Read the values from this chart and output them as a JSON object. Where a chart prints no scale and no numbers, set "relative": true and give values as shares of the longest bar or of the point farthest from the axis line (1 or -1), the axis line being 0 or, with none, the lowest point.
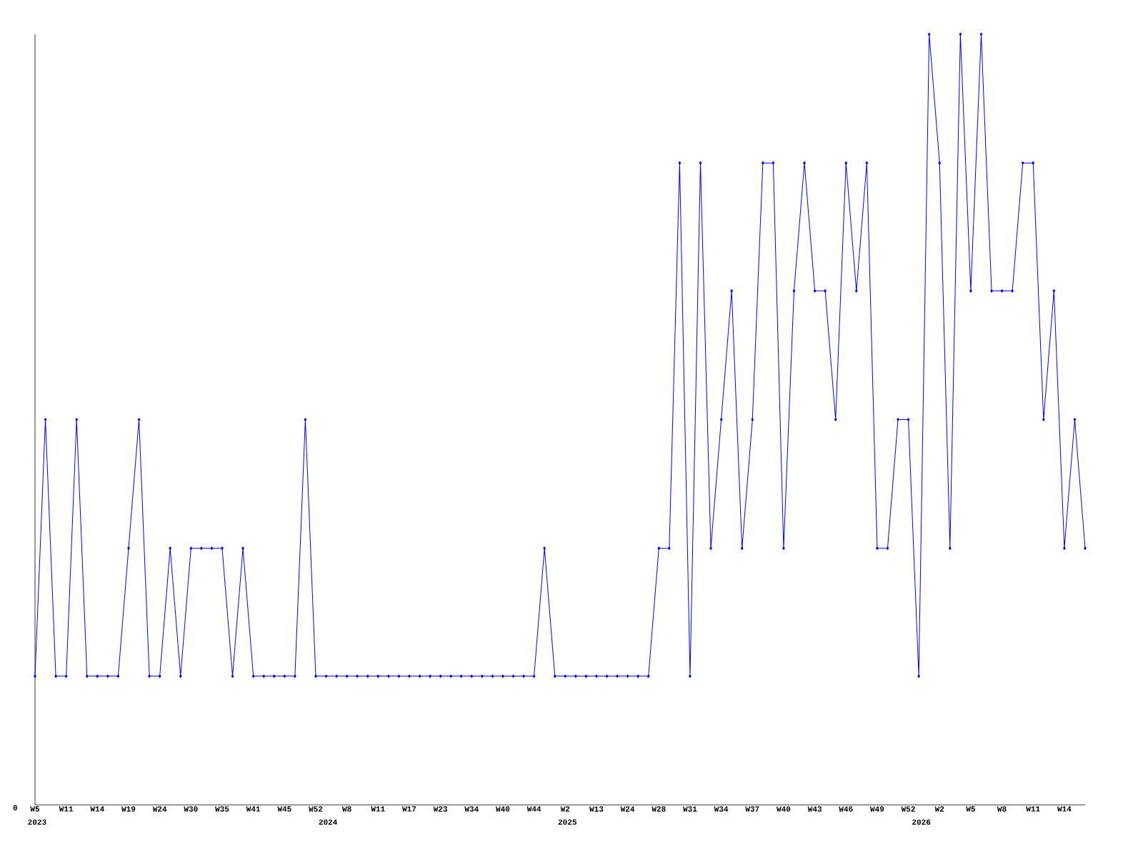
{
  "chart_data": {
    "type": "line",
    "relative": true,
    "color": "#0000ff",
    "marker": "diamond",
    "line_style": "solid",
    "categories": [
      "W5",
      null,
      null,
      "W11",
      null,
      null,
      "W14",
      null,
      null,
      "W19",
      null,
      null,
      "W24",
      null,
      null,
      "W30",
      null,
      null,
      "W35",
      null,
      null,
      "W41",
      null,
      null,
      "W45",
      null,
      null,
      "W52",
      null,
      null,
      "W8",
      null,
      null,
      "W11",
      null,
      null,
      "W17",
      null,
      null,
      "W23",
      null,
      null,
      "W34",
      null,
      null,
      "W40",
      null,
      null,
      "W44",
      null,
      null,
      "W2",
      null,
      null,
      "W13",
      null,
      null,
      "W24",
      null,
      null,
      "W28",
      null,
      null,
      "W31",
      null,
      null,
      "W34",
      null,
      null,
      "W37",
      null,
      null,
      "W40",
      null,
      null,
      "W43",
      null,
      null,
      "W46",
      null,
      null,
      "W49",
      null,
      null,
      "W52",
      null,
      null,
      "W2",
      null,
      null,
      "W5",
      null,
      null,
      "W8",
      null,
      null,
      "W11",
      null,
      null,
      "W14",
      null,
      null
    ],
    "values": [
      0.167,
      0.5,
      0.167,
      0.167,
      0.5,
      0.167,
      0.167,
      0.167,
      0.167,
      0.333,
      0.5,
      0.167,
      0.167,
      0.333,
      0.167,
      0.333,
      0.333,
      0.333,
      0.333,
      0.167,
      0.333,
      0.167,
      0.167,
      0.167,
      0.167,
      0.167,
      0.5,
      0.167,
      0.167,
      0.167,
      0.167,
      0.167,
      0.167,
      0.167,
      0.167,
      0.167,
      0.167,
      0.167,
      0.167,
      0.167,
      0.167,
      0.167,
      0.167,
      0.167,
      0.167,
      0.167,
      0.167,
      0.167,
      0.167,
      0.333,
      0.167,
      0.167,
      0.167,
      0.167,
      0.167,
      0.167,
      0.167,
      0.167,
      0.167,
      0.167,
      0.333,
      0.333,
      0.833,
      0.167,
      0.833,
      0.333,
      0.5,
      0.667,
      0.333,
      0.5,
      0.833,
      0.833,
      0.333,
      0.667,
      0.833,
      0.667,
      0.667,
      0.5,
      0.833,
      0.667,
      0.833,
      0.333,
      0.333,
      0.5,
      0.5,
      0.167,
      1,
      0.833,
      0.333,
      1,
      0.667,
      1,
      0.667,
      0.667,
      0.667,
      0.833,
      0.833,
      0.5,
      0.667,
      0.333,
      0.5,
      0.333
    ],
    "annotations": [
      "0",
      "2023",
      "2024",
      "2025",
      "2026"
    ]
  }
}
